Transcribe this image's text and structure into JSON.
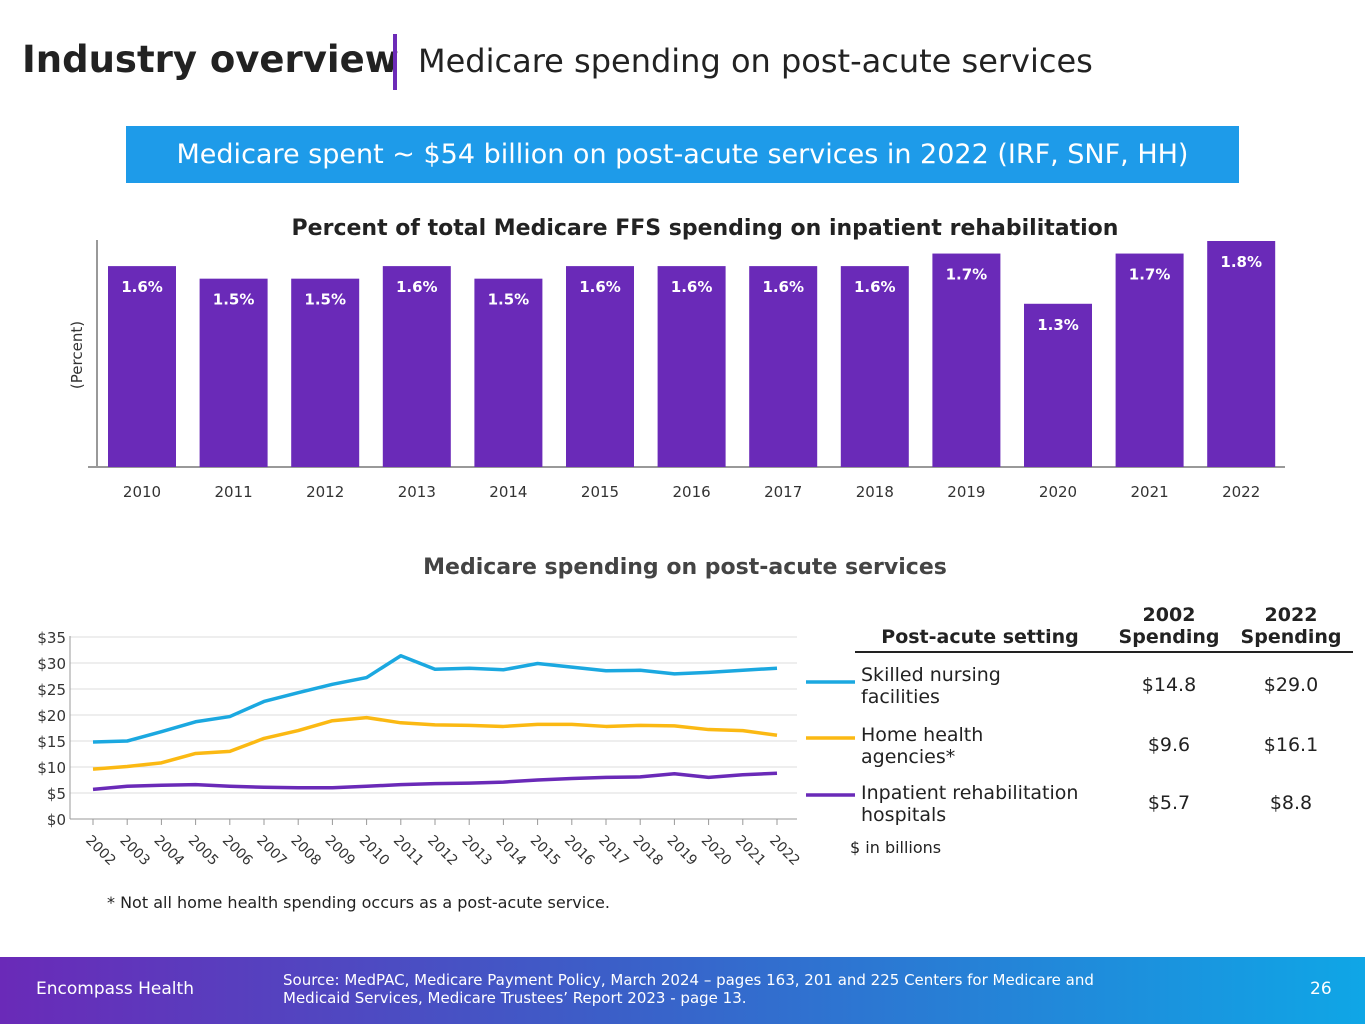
{
  "header": {
    "title": "Industry overview",
    "subtitle": "Medicare spending on post-acute services"
  },
  "banner": "Medicare spent ~ $54 billion on post-acute services in 2022 (IRF, SNF, HH)",
  "chart_data": [
    {
      "type": "bar",
      "title": "Percent of total Medicare FFS spending on inpatient rehabilitation",
      "ylabel": "(Percent)",
      "xlabel": "",
      "categories": [
        "2010",
        "2011",
        "2012",
        "2013",
        "2014",
        "2015",
        "2016",
        "2017",
        "2018",
        "2019",
        "2020",
        "2021",
        "2022"
      ],
      "values": [
        1.6,
        1.5,
        1.5,
        1.6,
        1.5,
        1.6,
        1.6,
        1.6,
        1.6,
        1.7,
        1.3,
        1.7,
        1.8
      ],
      "labels": [
        "1.6%",
        "1.5%",
        "1.5%",
        "1.6%",
        "1.5%",
        "1.6%",
        "1.6%",
        "1.6%",
        "1.6%",
        "1.7%",
        "1.3%",
        "1.7%",
        "1.8%"
      ],
      "color": "#6a2ab8",
      "grid": false
    },
    {
      "type": "line",
      "title": "Medicare spending on post-acute services",
      "x": [
        "2002",
        "2003",
        "2004",
        "2005",
        "2006",
        "2007",
        "2008",
        "2009",
        "2010",
        "2011",
        "2012",
        "2013",
        "2014",
        "2015",
        "2016",
        "2017",
        "2018",
        "2019",
        "2020",
        "2021",
        "2022"
      ],
      "ylim": [
        0,
        35
      ],
      "yticks": [
        "$0",
        "$5",
        "$10",
        "$15",
        "$20",
        "$25",
        "$30",
        "$35"
      ],
      "grid": true,
      "series": [
        {
          "name": "Skilled nursing facilities",
          "color": "#1ba8e0",
          "values": [
            14.8,
            15.0,
            16.8,
            18.7,
            19.7,
            22.6,
            24.3,
            25.9,
            27.2,
            31.4,
            28.8,
            29.0,
            28.7,
            29.9,
            29.2,
            28.5,
            28.6,
            27.9,
            28.2,
            28.6,
            29.0
          ]
        },
        {
          "name": "Home health agencies*",
          "color": "#fbb913",
          "values": [
            9.6,
            10.1,
            10.8,
            12.6,
            13.0,
            15.5,
            17.0,
            18.9,
            19.5,
            18.5,
            18.1,
            18.0,
            17.8,
            18.2,
            18.2,
            17.8,
            18.0,
            17.9,
            17.2,
            17.0,
            16.1
          ]
        },
        {
          "name": "Inpatient rehabilitation hospitals",
          "color": "#6a2ab8",
          "values": [
            5.7,
            6.3,
            6.5,
            6.6,
            6.3,
            6.1,
            6.0,
            6.0,
            6.3,
            6.6,
            6.8,
            6.9,
            7.1,
            7.5,
            7.8,
            8.0,
            8.1,
            8.7,
            8.0,
            8.5,
            8.8
          ]
        }
      ]
    }
  ],
  "table": {
    "headers": [
      "Post-acute setting",
      "2002 Spending",
      "2022 Spending"
    ],
    "rows": [
      [
        "Skilled nursing facilities",
        "$14.8",
        "$29.0"
      ],
      [
        "Home health agencies*",
        "$9.6",
        "$16.1"
      ],
      [
        "Inpatient rehabilitation hospitals",
        "$5.7",
        "$8.8"
      ]
    ],
    "units": "$ in billions"
  },
  "footnote": "* Not all home health spending occurs as a post-acute service.",
  "footer": {
    "brand": "Encompass Health",
    "source": "Source:  MedPAC, Medicare Payment Policy, March 2024 – pages 163, 201 and 225 Centers for Medicare and Medicaid Services, Medicare Trustees’ Report 2023 - page 13.",
    "page": "26"
  }
}
